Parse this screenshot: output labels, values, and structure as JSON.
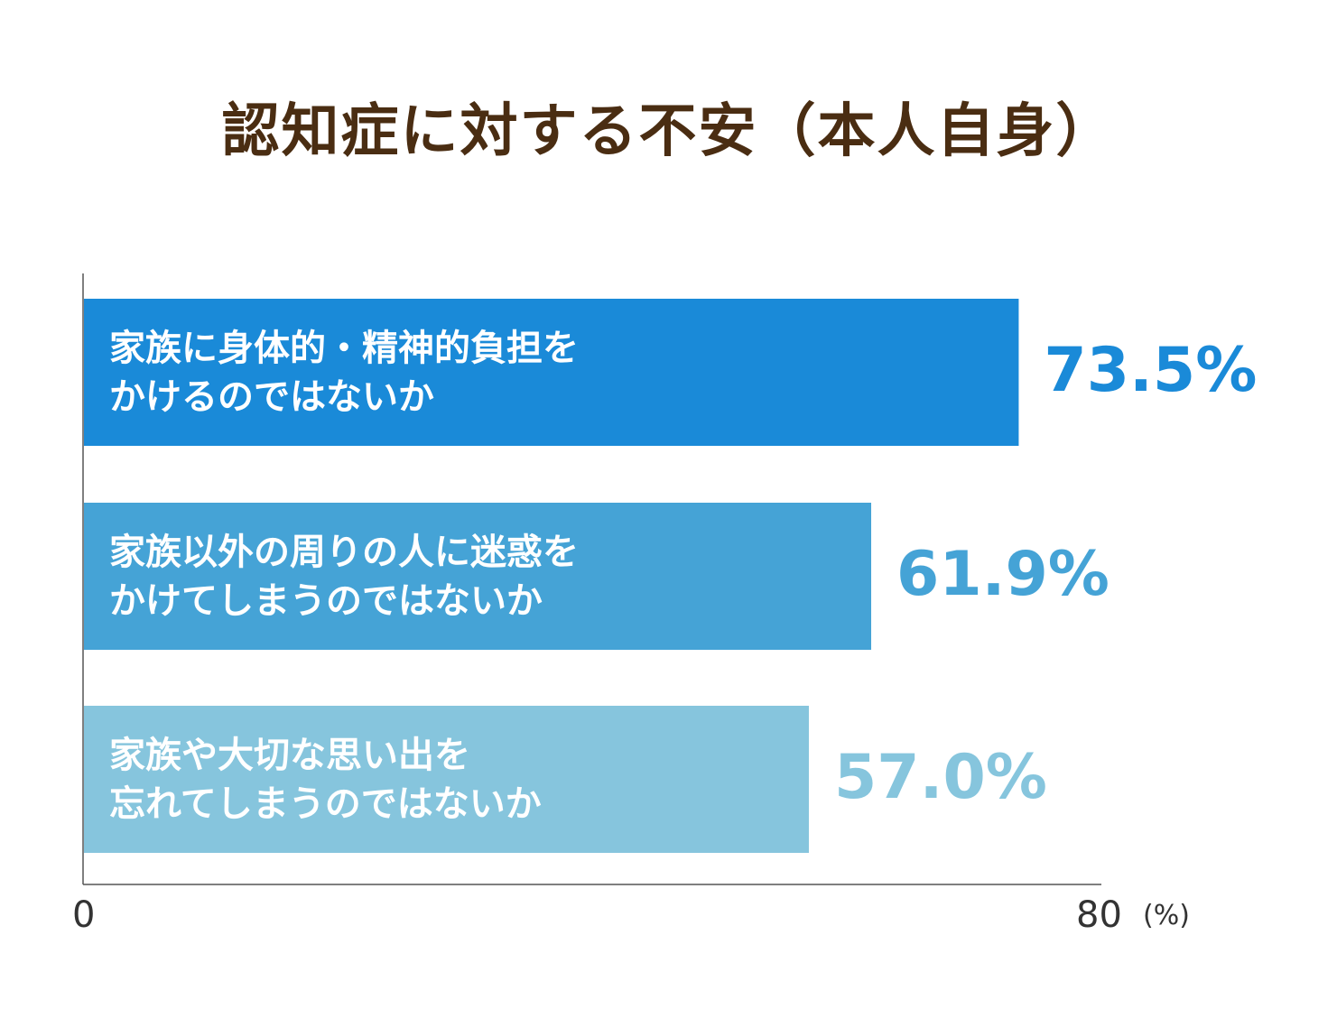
{
  "chart_data": {
    "type": "bar",
    "orientation": "horizontal",
    "title": "認知症に対する不安（本人自身）",
    "categories": [
      [
        "家族に身体的・精神的負担を",
        "かけるのではないか"
      ],
      [
        "家族以外の周りの人に迷惑を",
        "かけてしまうのではないか"
      ],
      [
        "家族や大切な思い出を",
        "忘れてしまうのではないか"
      ]
    ],
    "values": [
      73.5,
      61.9,
      57.0
    ],
    "value_labels": [
      "73.5%",
      "61.9%",
      "57.0%"
    ],
    "bar_colors": [
      "#1a8ad8",
      "#45a3d6",
      "#86c5dd"
    ],
    "xlim": [
      0,
      80
    ],
    "x_tick_labels": [
      "0",
      "80"
    ],
    "x_unit": "(%)",
    "grid": false,
    "legend": "none"
  }
}
